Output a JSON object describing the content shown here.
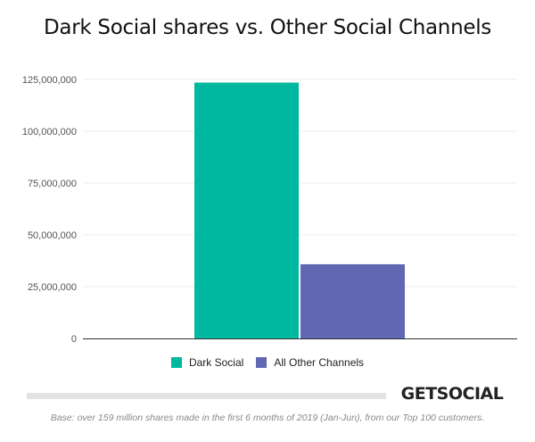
{
  "brand": {
    "name": "GETSOCIAL"
  },
  "footnote": "Base: over 159 million shares made in the first 6 months of 2019 (Jan-Jun), from our Top 100 customers.",
  "chart_data": {
    "type": "bar",
    "title": "Dark Social shares vs. Other Social Channels",
    "xlabel": "",
    "ylabel": "",
    "ylim": [
      0,
      125000000
    ],
    "yticks": [
      {
        "value": 0,
        "label": "0"
      },
      {
        "value": 25000000,
        "label": "25,000,000"
      },
      {
        "value": 50000000,
        "label": "50,000,000"
      },
      {
        "value": 75000000,
        "label": "75,000,000"
      },
      {
        "value": 100000000,
        "label": "100,000,000"
      },
      {
        "value": 125000000,
        "label": "125,000,000"
      }
    ],
    "grid": true,
    "legend_position": "bottom",
    "series": [
      {
        "name": "Dark Social",
        "values": [
          123500000
        ],
        "color": "#00b89f"
      },
      {
        "name": "All Other Channels",
        "values": [
          35800000
        ],
        "color": "#6167b3"
      }
    ]
  }
}
